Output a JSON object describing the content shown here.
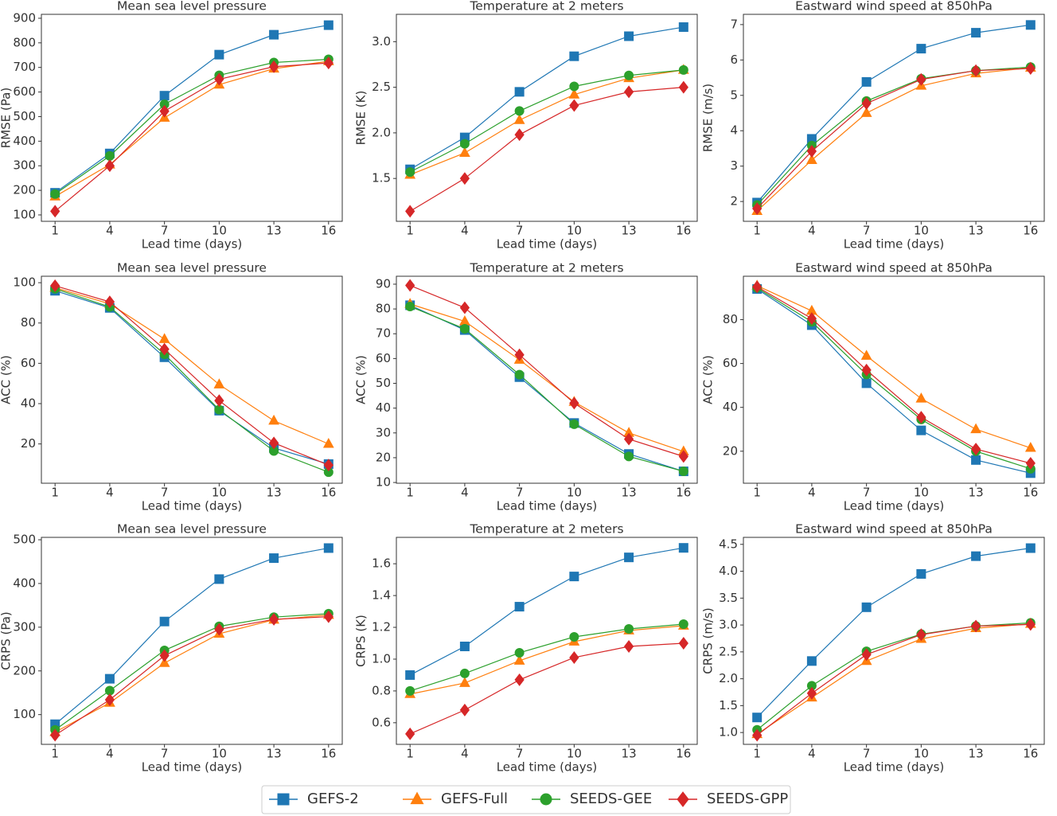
{
  "chart_data": [
    {
      "type": "line",
      "title": "Mean sea level pressure",
      "xlabel": "Lead time (days)",
      "ylabel": "RMSE (Pa)",
      "x": [
        1,
        4,
        7,
        10,
        13,
        16
      ],
      "xlim": [
        0.25,
        16.75
      ],
      "xticks": [
        1,
        4,
        7,
        10,
        13,
        16
      ],
      "ylim": [
        74,
        916
      ],
      "yticks": [
        100,
        200,
        300,
        400,
        500,
        600,
        700,
        800,
        900
      ],
      "series": [
        {
          "name": "GEFS-2",
          "color": "#1f77b4",
          "marker": "square",
          "values": [
            190,
            350,
            585,
            752,
            833,
            872
          ]
        },
        {
          "name": "GEFS-Full",
          "color": "#ff7f0e",
          "marker": "triangle",
          "values": [
            175,
            305,
            495,
            630,
            695,
            725
          ]
        },
        {
          "name": "SEEDS-GEE",
          "color": "#2ca02c",
          "marker": "circle",
          "values": [
            185,
            340,
            550,
            668,
            720,
            733
          ]
        },
        {
          "name": "SEEDS-GPP",
          "color": "#d62728",
          "marker": "diamond",
          "values": [
            115,
            300,
            522,
            652,
            703,
            718
          ]
        }
      ]
    },
    {
      "type": "line",
      "title": "Temperature at 2 meters",
      "xlabel": "Lead time (days)",
      "ylabel": "RMSE (K)",
      "x": [
        1,
        4,
        7,
        10,
        13,
        16
      ],
      "xlim": [
        0.25,
        16.75
      ],
      "xticks": [
        1,
        4,
        7,
        10,
        13,
        16
      ],
      "ylim": [
        1.03,
        3.3
      ],
      "yticks": [
        1.5,
        {
          "value": 2,
          "label": "2.0"
        },
        2.5,
        {
          "value": 3,
          "label": "3.0"
        }
      ],
      "series": [
        {
          "name": "GEFS-2",
          "color": "#1f77b4",
          "marker": "square",
          "values": [
            1.6,
            1.95,
            2.45,
            2.84,
            3.06,
            3.16
          ]
        },
        {
          "name": "GEFS-Full",
          "color": "#ff7f0e",
          "marker": "triangle",
          "values": [
            1.54,
            1.78,
            2.14,
            2.42,
            2.6,
            2.69
          ]
        },
        {
          "name": "SEEDS-GEE",
          "color": "#2ca02c",
          "marker": "circle",
          "values": [
            1.57,
            1.88,
            2.24,
            2.51,
            2.63,
            2.69
          ]
        },
        {
          "name": "SEEDS-GPP",
          "color": "#d62728",
          "marker": "diamond",
          "values": [
            1.14,
            1.5,
            1.98,
            2.3,
            2.45,
            2.5
          ]
        }
      ]
    },
    {
      "type": "line",
      "title": "Eastward wind speed at 850hPa",
      "xlabel": "Lead time (days)",
      "ylabel": "RMSE (m/s)",
      "x": [
        1,
        4,
        7,
        10,
        13,
        16
      ],
      "xlim": [
        0.25,
        16.75
      ],
      "xticks": [
        1,
        4,
        7,
        10,
        13,
        16
      ],
      "ylim": [
        1.44,
        7.29
      ],
      "yticks": [
        2,
        3,
        4,
        5,
        6,
        7
      ],
      "series": [
        {
          "name": "GEFS-2",
          "color": "#1f77b4",
          "marker": "square",
          "values": [
            1.97,
            3.77,
            5.38,
            6.32,
            6.77,
            6.99
          ]
        },
        {
          "name": "GEFS-Full",
          "color": "#ff7f0e",
          "marker": "triangle",
          "values": [
            1.73,
            3.17,
            4.5,
            5.27,
            5.62,
            5.78
          ]
        },
        {
          "name": "SEEDS-GEE",
          "color": "#2ca02c",
          "marker": "circle",
          "values": [
            1.9,
            3.58,
            4.84,
            5.47,
            5.7,
            5.8
          ]
        },
        {
          "name": "SEEDS-GPP",
          "color": "#d62728",
          "marker": "diamond",
          "values": [
            1.8,
            3.42,
            4.77,
            5.45,
            5.7,
            5.76
          ]
        }
      ]
    },
    {
      "type": "line",
      "title": "Mean sea level pressure",
      "xlabel": "Lead time (days)",
      "ylabel": "ACC (%)",
      "x": [
        1,
        4,
        7,
        10,
        13,
        16
      ],
      "xlim": [
        0.25,
        16.75
      ],
      "xticks": [
        1,
        4,
        7,
        10,
        13,
        16
      ],
      "ylim": [
        0.5,
        103.2
      ],
      "yticks": [
        20,
        40,
        60,
        80,
        100
      ],
      "series": [
        {
          "name": "GEFS-2",
          "color": "#1f77b4",
          "marker": "square",
          "values": [
            96,
            87.5,
            63,
            36.5,
            18,
            10
          ]
        },
        {
          "name": "GEFS-Full",
          "color": "#ff7f0e",
          "marker": "triangle",
          "values": [
            97.5,
            89.5,
            72,
            49.5,
            31.5,
            20
          ]
        },
        {
          "name": "SEEDS-GEE",
          "color": "#2ca02c",
          "marker": "circle",
          "values": [
            97,
            88,
            64.5,
            37,
            16.5,
            6
          ]
        },
        {
          "name": "SEEDS-GPP",
          "color": "#d62728",
          "marker": "diamond",
          "values": [
            98.5,
            90.5,
            67,
            41.5,
            20.5,
            9.5
          ]
        }
      ]
    },
    {
      "type": "line",
      "title": "Temperature at 2 meters",
      "xlabel": "Lead time (days)",
      "ylabel": "ACC (%)",
      "x": [
        1,
        4,
        7,
        10,
        13,
        16
      ],
      "xlim": [
        0.25,
        16.75
      ],
      "xticks": [
        1,
        4,
        7,
        10,
        13,
        16
      ],
      "ylim": [
        9.7,
        93.2
      ],
      "yticks": [
        10,
        20,
        30,
        40,
        50,
        60,
        70,
        80,
        90
      ],
      "series": [
        {
          "name": "GEFS-2",
          "color": "#1f77b4",
          "marker": "square",
          "values": [
            81.5,
            71.5,
            52.5,
            34,
            21.5,
            14.5
          ]
        },
        {
          "name": "GEFS-Full",
          "color": "#ff7f0e",
          "marker": "triangle",
          "values": [
            82,
            75,
            59.5,
            42.5,
            30,
            22.5
          ]
        },
        {
          "name": "SEEDS-GEE",
          "color": "#2ca02c",
          "marker": "circle",
          "values": [
            81,
            72,
            53.5,
            33.5,
            20.5,
            14.5
          ]
        },
        {
          "name": "SEEDS-GPP",
          "color": "#d62728",
          "marker": "diamond",
          "values": [
            89.5,
            80.5,
            61.5,
            42,
            27.5,
            20.5
          ]
        }
      ]
    },
    {
      "type": "line",
      "title": "Eastward wind speed at 850hPa",
      "xlabel": "Lead time (days)",
      "ylabel": "ACC (%)",
      "x": [
        1,
        4,
        7,
        10,
        13,
        16
      ],
      "xlim": [
        0.25,
        16.75
      ],
      "xticks": [
        1,
        4,
        7,
        10,
        13,
        16
      ],
      "ylim": [
        5.4,
        99.8
      ],
      "yticks": [
        20,
        40,
        60,
        80
      ],
      "series": [
        {
          "name": "GEFS-2",
          "color": "#1f77b4",
          "marker": "square",
          "values": [
            94,
            77.5,
            51,
            29.5,
            16,
            10
          ]
        },
        {
          "name": "GEFS-Full",
          "color": "#ff7f0e",
          "marker": "triangle",
          "values": [
            95.5,
            84,
            63.5,
            44,
            30,
            21.5
          ]
        },
        {
          "name": "SEEDS-GEE",
          "color": "#2ca02c",
          "marker": "circle",
          "values": [
            94.5,
            79,
            55,
            34.5,
            20,
            12
          ]
        },
        {
          "name": "SEEDS-GPP",
          "color": "#d62728",
          "marker": "diamond",
          "values": [
            95,
            80.5,
            57,
            35.5,
            21,
            14.5
          ]
        }
      ]
    },
    {
      "type": "line",
      "title": "Mean sea level pressure",
      "xlabel": "Lead time (days)",
      "ylabel": "CRPS (Pa)",
      "x": [
        1,
        4,
        7,
        10,
        13,
        16
      ],
      "xlim": [
        0.25,
        16.75
      ],
      "xticks": [
        1,
        4,
        7,
        10,
        13,
        16
      ],
      "ylim": [
        32,
        505.5
      ],
      "yticks": [
        100,
        200,
        300,
        400,
        500
      ],
      "series": [
        {
          "name": "GEFS-2",
          "color": "#1f77b4",
          "marker": "square",
          "values": [
            78,
            182,
            313,
            410,
            458,
            481
          ]
        },
        {
          "name": "GEFS-Full",
          "color": "#ff7f0e",
          "marker": "triangle",
          "values": [
            60,
            127,
            218,
            285,
            317,
            328
          ]
        },
        {
          "name": "SEEDS-GEE",
          "color": "#2ca02c",
          "marker": "circle",
          "values": [
            65,
            155,
            247,
            302,
            323,
            331
          ]
        },
        {
          "name": "SEEDS-GPP",
          "color": "#d62728",
          "marker": "diamond",
          "values": [
            53,
            134,
            235,
            295,
            318,
            324
          ]
        }
      ]
    },
    {
      "type": "line",
      "title": "Temperature at 2 meters",
      "xlabel": "Lead time (days)",
      "ylabel": "CRPS (K)",
      "x": [
        1,
        4,
        7,
        10,
        13,
        16
      ],
      "xlim": [
        0.25,
        16.75
      ],
      "xticks": [
        1,
        4,
        7,
        10,
        13,
        16
      ],
      "ylim": [
        0.464,
        1.766
      ],
      "yticks": [
        0.6,
        0.8,
        {
          "value": 1,
          "label": "1.0"
        },
        1.2,
        1.4,
        1.6
      ],
      "series": [
        {
          "name": "GEFS-2",
          "color": "#1f77b4",
          "marker": "square",
          "values": [
            0.9,
            1.08,
            1.33,
            1.52,
            1.64,
            1.7
          ]
        },
        {
          "name": "GEFS-Full",
          "color": "#ff7f0e",
          "marker": "triangle",
          "values": [
            0.78,
            0.85,
            0.99,
            1.11,
            1.18,
            1.21
          ]
        },
        {
          "name": "SEEDS-GEE",
          "color": "#2ca02c",
          "marker": "circle",
          "values": [
            0.8,
            0.91,
            1.04,
            1.14,
            1.19,
            1.22
          ]
        },
        {
          "name": "SEEDS-GPP",
          "color": "#d62728",
          "marker": "diamond",
          "values": [
            0.53,
            0.68,
            0.87,
            1.01,
            1.08,
            1.1
          ]
        }
      ]
    },
    {
      "type": "line",
      "title": "Eastward wind speed at 850hPa",
      "xlabel": "Lead time (days)",
      "ylabel": "CRPS (m/s)",
      "x": [
        1,
        4,
        7,
        10,
        13,
        16
      ],
      "xlim": [
        0.25,
        16.75
      ],
      "xticks": [
        1,
        4,
        7,
        10,
        13,
        16
      ],
      "ylim": [
        0.78,
        4.63
      ],
      "yticks": [
        {
          "value": 1,
          "label": "1.0"
        },
        1.5,
        {
          "value": 2,
          "label": "2.0"
        },
        2.5,
        {
          "value": 3,
          "label": "3.0"
        },
        3.5,
        {
          "value": 4,
          "label": "4.0"
        },
        4.5
      ],
      "series": [
        {
          "name": "GEFS-2",
          "color": "#1f77b4",
          "marker": "square",
          "values": [
            1.28,
            2.33,
            3.33,
            3.95,
            4.28,
            4.43
          ]
        },
        {
          "name": "GEFS-Full",
          "color": "#ff7f0e",
          "marker": "triangle",
          "values": [
            0.97,
            1.65,
            2.33,
            2.74,
            2.94,
            3.02
          ]
        },
        {
          "name": "SEEDS-GEE",
          "color": "#2ca02c",
          "marker": "circle",
          "values": [
            1.05,
            1.87,
            2.51,
            2.83,
            2.98,
            3.04
          ]
        },
        {
          "name": "SEEDS-GPP",
          "color": "#d62728",
          "marker": "diamond",
          "values": [
            0.95,
            1.73,
            2.45,
            2.82,
            2.98,
            3.01
          ]
        }
      ]
    }
  ]
}
